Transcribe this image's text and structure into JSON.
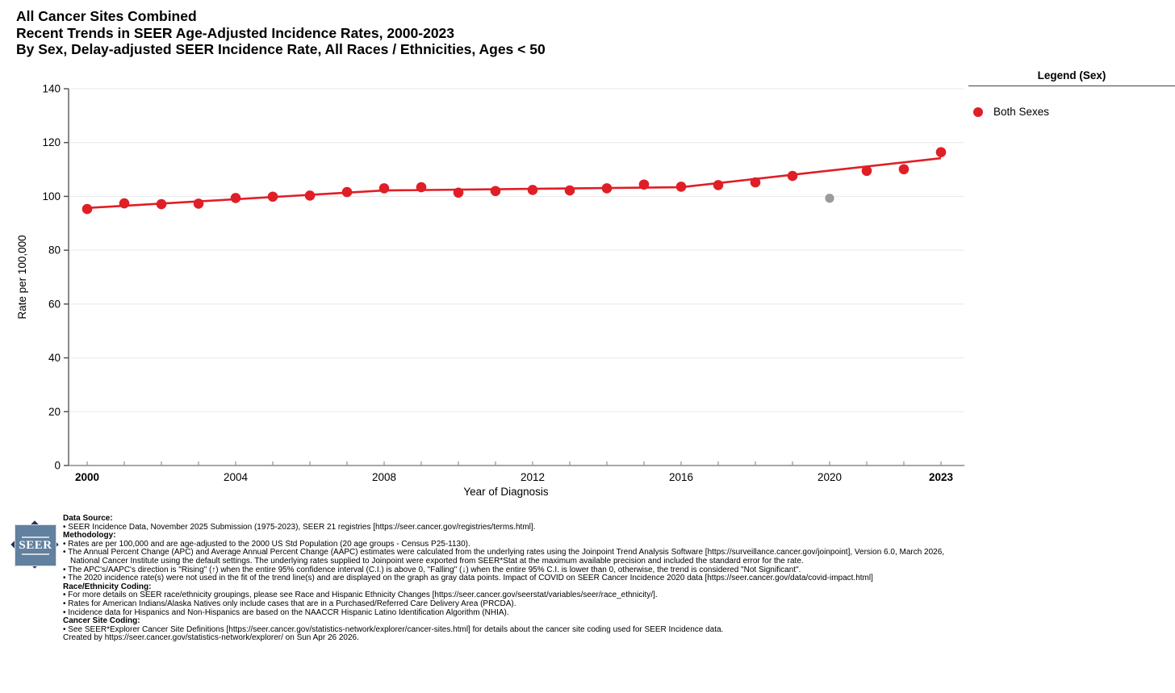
{
  "header": {
    "title_lines": [
      "All Cancer Sites Combined",
      "Recent Trends in SEER Age-Adjusted Incidence Rates, 2000-2023",
      "By Sex, Delay-adjusted SEER Incidence Rate, All Races / Ethnicities, Ages < 50"
    ]
  },
  "legend": {
    "title": "Legend (Sex)",
    "items": [
      {
        "label": "Both Sexes",
        "color": "#e01e26"
      }
    ]
  },
  "chart_data": {
    "type": "line",
    "xlabel": "Year of Diagnosis",
    "ylabel": "Rate per 100,000",
    "xlim": [
      2000,
      2023
    ],
    "ylim": [
      0,
      140
    ],
    "ytick_step": 20,
    "yticks": [
      0,
      20,
      40,
      60,
      80,
      100,
      120,
      140
    ],
    "xticks_labeled": [
      {
        "year": 2000,
        "bold": true
      },
      {
        "year": 2004,
        "bold": false
      },
      {
        "year": 2008,
        "bold": false
      },
      {
        "year": 2012,
        "bold": false
      },
      {
        "year": 2016,
        "bold": false
      },
      {
        "year": 2020,
        "bold": false
      },
      {
        "year": 2023,
        "bold": true
      }
    ],
    "grid": true,
    "legend_position": "right",
    "series": [
      {
        "name": "Both Sexes",
        "color": "#e01e26",
        "marker": "circle",
        "points": [
          [
            2000,
            95.3
          ],
          [
            2001,
            97.4
          ],
          [
            2002,
            97.1
          ],
          [
            2003,
            97.3
          ],
          [
            2004,
            99.4
          ],
          [
            2005,
            99.9
          ],
          [
            2006,
            100.3
          ],
          [
            2007,
            101.6
          ],
          [
            2008,
            103.0
          ],
          [
            2009,
            103.4
          ],
          [
            2010,
            101.4
          ],
          [
            2011,
            102.0
          ],
          [
            2012,
            102.4
          ],
          [
            2013,
            102.2
          ],
          [
            2014,
            103.0
          ],
          [
            2015,
            104.4
          ],
          [
            2016,
            103.6
          ],
          [
            2017,
            104.2
          ],
          [
            2018,
            105.2
          ],
          [
            2019,
            107.6
          ],
          [
            2021,
            109.5
          ],
          [
            2022,
            110.1
          ],
          [
            2023,
            116.4
          ]
        ]
      }
    ],
    "excluded_points": [
      {
        "year": 2020,
        "value": 99.3,
        "color": "#9b9b9b",
        "note": "2020 gray COVID data point, not used in trend fit"
      }
    ],
    "trend_line": {
      "name": "Joinpoint trend (Both Sexes)",
      "color": "#e01e26",
      "points": [
        [
          2000,
          95.7
        ],
        [
          2008,
          102.2
        ],
        [
          2016,
          103.4
        ],
        [
          2023,
          114.2
        ]
      ]
    }
  },
  "footer": {
    "logo_text": "SEER",
    "sections": [
      {
        "h": true,
        "t": "Data Source:"
      },
      {
        "h": false,
        "t": "• SEER Incidence Data, November 2025 Submission (1975-2023), SEER 21 registries [https://seer.cancer.gov/registries/terms.html]."
      },
      {
        "h": true,
        "t": "Methodology:"
      },
      {
        "h": false,
        "t": "• Rates are per 100,000 and are age-adjusted to the 2000 US Std Population (20 age groups - Census P25-1130)."
      },
      {
        "h": false,
        "t": "• The Annual Percent Change (APC) and Average Annual Percent Change (AAPC) estimates were calculated from the underlying rates using the Joinpoint Trend Analysis Software [https://surveillance.cancer.gov/joinpoint], Version 6.0, March 2026, National Cancer Institute using the default settings. The underlying rates supplied to Joinpoint were exported from SEER*Stat at the maximum available precision and included the standard error for the rate."
      },
      {
        "h": false,
        "t": "• The APC's/AAPC's direction is \"Rising\" (↑) when the entire 95% confidence interval (C.I.) is above 0, \"Falling\" (↓) when the entire 95% C.I. is lower than 0, otherwise, the trend is considered \"Not Significant\"."
      },
      {
        "h": false,
        "t": "• The 2020 incidence rate(s) were not used in the fit of the trend line(s) and are displayed on the graph as gray data points. Impact of COVID on SEER Cancer Incidence 2020 data [https://seer.cancer.gov/data/covid-impact.html]"
      },
      {
        "h": true,
        "t": "Race/Ethnicity Coding:"
      },
      {
        "h": false,
        "t": "• For more details on SEER race/ethnicity groupings, please see Race and Hispanic Ethnicity Changes [https://seer.cancer.gov/seerstat/variables/seer/race_ethnicity/]."
      },
      {
        "h": false,
        "t": "• Rates for American Indians/Alaska Natives only include cases that are in a Purchased/Referred Care Delivery Area (PRCDA)."
      },
      {
        "h": false,
        "t": "• Incidence data for Hispanics and Non-Hispanics are based on the NAACCR Hispanic Latino Identification Algorithm (NHIA)."
      },
      {
        "h": true,
        "t": "Cancer Site Coding:"
      },
      {
        "h": false,
        "t": "• See SEER*Explorer Cancer Site Definitions [https://seer.cancer.gov/statistics-network/explorer/cancer-sites.html] for details about the cancer site coding used for SEER Incidence data."
      },
      {
        "h": false,
        "t": "Created by https://seer.cancer.gov/statistics-network/explorer/ on Sun Apr 26 2026."
      }
    ]
  }
}
